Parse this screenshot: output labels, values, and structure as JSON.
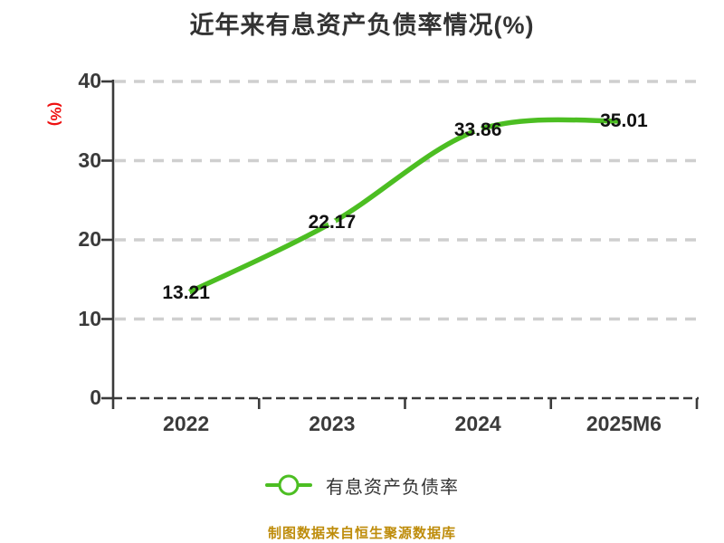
{
  "chart_data": {
    "type": "line",
    "title": "近年来有息资产负债率情况(%)",
    "ylabel": "(%)",
    "xlabel": "",
    "categories": [
      "2022",
      "2023",
      "2024",
      "2025M6"
    ],
    "series": [
      {
        "name": "有息资产负债率",
        "values": [
          13.21,
          22.17,
          33.86,
          35.01
        ]
      }
    ],
    "ylim": [
      0,
      40
    ],
    "yticks": [
      0,
      10,
      20,
      30,
      40
    ],
    "grid": "horizontal-dashed",
    "smooth": true,
    "legend_position": "bottom",
    "marker": "white-circle"
  },
  "footer": {
    "source_note": "制图数据来自恒生聚源数据库"
  },
  "colors": {
    "line_green": "#4cbe22",
    "marker_fill": "#ffffff",
    "grid_gray": "#cfcfcf",
    "axis_dark": "#3a3a3a",
    "title_text": "#333333",
    "tick_text": "#3a3a3a",
    "point_label_text": "#111111",
    "ylabel_red": "#ee1111",
    "footer_gold": "#be8c0a",
    "background": "#ffffff"
  }
}
